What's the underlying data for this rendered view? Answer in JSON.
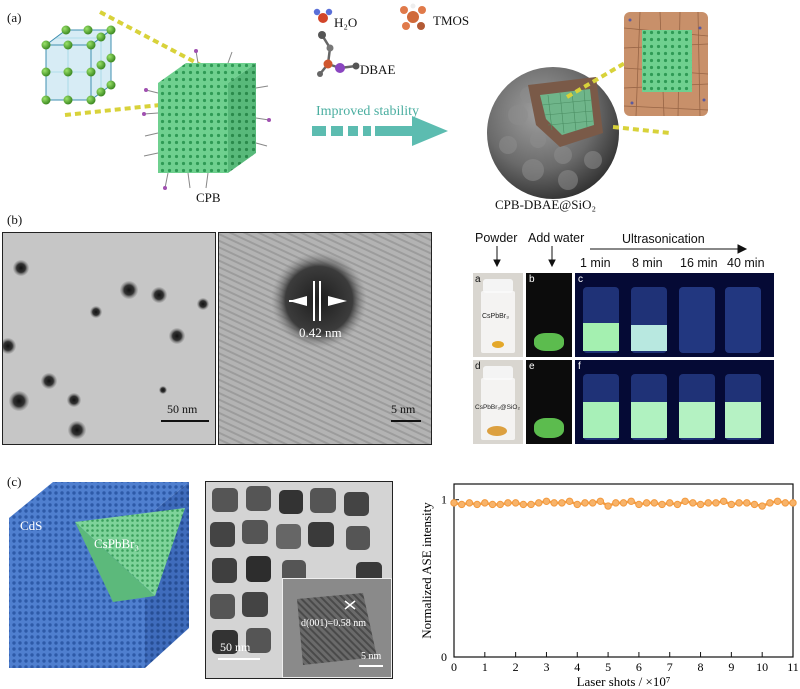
{
  "panel_a": {
    "label": "(a)",
    "reagents": {
      "water": "H₂O",
      "tmos": "TMOS",
      "dbae": "DBAE"
    },
    "arrow_text": "Improved stability",
    "left_caption": "CPB",
    "right_caption": "CPB-DBAE@SiO₂"
  },
  "panel_b": {
    "label": "(b)",
    "tem_scale_left": "50 nm",
    "tem_scale_right": "5 nm",
    "lattice_spacing": "0.42 nm",
    "headers": {
      "powder": "Powder",
      "add_water": "Add water",
      "ultrasonication": "Ultrasonication"
    },
    "times": [
      "1 min",
      "8 min",
      "16 min",
      "40 min"
    ],
    "letters_top": [
      "a",
      "b",
      "c"
    ],
    "letters_bottom": [
      "d",
      "e",
      "f"
    ],
    "sample_top": "CsPbBr₃",
    "sample_bottom": "CsPbBr₃@SiO₂"
  },
  "panel_c": {
    "label": "(c)",
    "shell_label": "CdS",
    "core_label": "CsPbBr₃",
    "tem_scale": "50 nm",
    "inset_scale": "5 nm",
    "inset_spacing": "d(001)=0.58 nm"
  },
  "chart_data": {
    "type": "line",
    "xlabel": "Laser shots / ×10⁷",
    "ylabel": "Normalized ASE intensity",
    "xlim": [
      0,
      11
    ],
    "ylim": [
      0,
      1.1
    ],
    "xticks": [
      "0",
      "1",
      "2",
      "3",
      "4",
      "5",
      "6",
      "7",
      "8",
      "9",
      "10",
      "11"
    ],
    "yticks": [
      "0",
      "1"
    ],
    "grid": false,
    "series": [
      {
        "color": "#f39a3e",
        "x": [
          0,
          0.25,
          0.5,
          0.75,
          1,
          1.25,
          1.5,
          1.75,
          2,
          2.25,
          2.5,
          2.75,
          3,
          3.25,
          3.5,
          3.75,
          4,
          4.25,
          4.5,
          4.75,
          5,
          5.25,
          5.5,
          5.75,
          6,
          6.25,
          6.5,
          6.75,
          7,
          7.25,
          7.5,
          7.75,
          8,
          8.25,
          8.5,
          8.75,
          9,
          9.25,
          9.5,
          9.75,
          10,
          10.25,
          10.5,
          10.75,
          11
        ],
        "y": [
          0.98,
          0.97,
          0.98,
          0.97,
          0.98,
          0.97,
          0.97,
          0.98,
          0.98,
          0.97,
          0.97,
          0.98,
          0.99,
          0.98,
          0.98,
          0.99,
          0.97,
          0.98,
          0.98,
          0.99,
          0.96,
          0.98,
          0.98,
          0.99,
          0.97,
          0.98,
          0.98,
          0.97,
          0.98,
          0.97,
          0.99,
          0.98,
          0.97,
          0.98,
          0.98,
          0.99,
          0.97,
          0.98,
          0.98,
          0.97,
          0.96,
          0.98,
          0.99,
          0.98,
          0.98
        ]
      }
    ]
  }
}
